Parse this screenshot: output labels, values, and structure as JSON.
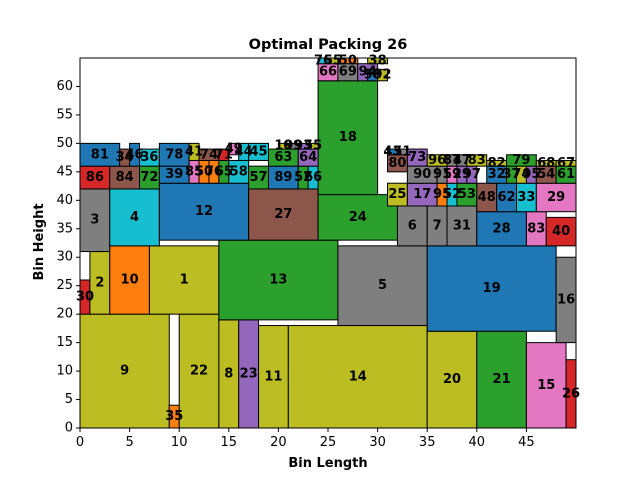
{
  "chart_data": {
    "type": "bar",
    "title": "Optimal Packing 26",
    "xlabel": "Bin Length",
    "ylabel": "Bin Height",
    "xlim": [
      0,
      50
    ],
    "ylim": [
      0,
      65
    ],
    "xticks": [
      0,
      5,
      10,
      15,
      20,
      25,
      30,
      35,
      40,
      45
    ],
    "yticks": [
      0,
      5,
      10,
      15,
      20,
      25,
      30,
      35,
      40,
      45,
      50,
      55,
      60
    ],
    "grid": false,
    "palette": {
      "blue": "#1f77b4",
      "orange": "#ff7f0e",
      "green": "#2ca02c",
      "red": "#d62728",
      "purple": "#9467bd",
      "brown": "#8c564b",
      "pink": "#e377c2",
      "gray": "#7f7f7f",
      "olive": "#bcbd22",
      "cyan": "#17becf"
    },
    "rectangles": [
      {
        "label": "9",
        "x": 0,
        "y": 0,
        "w": 9,
        "h": 20,
        "color": "olive"
      },
      {
        "label": "35",
        "x": 9,
        "y": 0,
        "w": 1,
        "h": 4,
        "color": "orange"
      },
      {
        "label": "22",
        "x": 10,
        "y": 0,
        "w": 4,
        "h": 20,
        "color": "olive"
      },
      {
        "label": "8",
        "x": 14,
        "y": 0,
        "w": 2,
        "h": 19,
        "color": "olive"
      },
      {
        "label": "23",
        "x": 16,
        "y": 0,
        "w": 2,
        "h": 19,
        "color": "purple"
      },
      {
        "label": "11",
        "x": 18,
        "y": 0,
        "w": 3,
        "h": 18,
        "color": "olive"
      },
      {
        "label": "14",
        "x": 21,
        "y": 0,
        "w": 14,
        "h": 18,
        "color": "olive"
      },
      {
        "label": "20",
        "x": 35,
        "y": 0,
        "w": 5,
        "h": 17,
        "color": "olive"
      },
      {
        "label": "21",
        "x": 40,
        "y": 0,
        "w": 5,
        "h": 17,
        "color": "green"
      },
      {
        "label": "15",
        "x": 45,
        "y": 0,
        "w": 4,
        "h": 15,
        "color": "pink"
      },
      {
        "label": "26",
        "x": 49,
        "y": 0,
        "w": 1,
        "h": 12,
        "color": "red"
      },
      {
        "label": "30",
        "x": 0,
        "y": 20,
        "w": 1,
        "h": 6,
        "color": "red"
      },
      {
        "label": "2",
        "x": 1,
        "y": 20,
        "w": 2,
        "h": 11,
        "color": "olive"
      },
      {
        "label": "10",
        "x": 3,
        "y": 20,
        "w": 4,
        "h": 12,
        "color": "orange"
      },
      {
        "label": "1",
        "x": 7,
        "y": 20,
        "w": 7,
        "h": 12,
        "color": "olive"
      },
      {
        "label": "13",
        "x": 14,
        "y": 19,
        "w": 12,
        "h": 14,
        "color": "green"
      },
      {
        "label": "5",
        "x": 26,
        "y": 18,
        "w": 9,
        "h": 14,
        "color": "gray"
      },
      {
        "label": "19",
        "x": 35,
        "y": 17,
        "w": 13,
        "h": 15,
        "color": "blue"
      },
      {
        "label": "16",
        "x": 48,
        "y": 15,
        "w": 2,
        "h": 15,
        "color": "gray"
      },
      {
        "label": "3",
        "x": 0,
        "y": 31,
        "w": 3,
        "h": 11,
        "color": "gray"
      },
      {
        "label": "4",
        "x": 3,
        "y": 32,
        "w": 5,
        "h": 10,
        "color": "cyan"
      },
      {
        "label": "12",
        "x": 8,
        "y": 33,
        "w": 9,
        "h": 10,
        "color": "blue"
      },
      {
        "label": "27",
        "x": 17,
        "y": 33,
        "w": 7,
        "h": 9,
        "color": "brown"
      },
      {
        "label": "24",
        "x": 24,
        "y": 33,
        "w": 8,
        "h": 8,
        "color": "green"
      },
      {
        "label": "6",
        "x": 32,
        "y": 32,
        "w": 3,
        "h": 7,
        "color": "gray"
      },
      {
        "label": "7",
        "x": 35,
        "y": 32,
        "w": 2,
        "h": 7,
        "color": "gray"
      },
      {
        "label": "31",
        "x": 37,
        "y": 32,
        "w": 3,
        "h": 7,
        "color": "gray"
      },
      {
        "label": "28",
        "x": 40,
        "y": 32,
        "w": 5,
        "h": 6,
        "color": "blue"
      },
      {
        "label": "83",
        "x": 45,
        "y": 32,
        "w": 2,
        "h": 6,
        "color": "pink"
      },
      {
        "label": "40",
        "x": 47,
        "y": 32,
        "w": 3,
        "h": 5,
        "color": "red"
      },
      {
        "label": "18",
        "x": 24,
        "y": 41,
        "w": 6,
        "h": 20,
        "color": "green"
      },
      {
        "label": "86",
        "x": 0,
        "y": 42,
        "w": 3,
        "h": 4,
        "color": "red"
      },
      {
        "label": "84",
        "x": 3,
        "y": 42,
        "w": 3,
        "h": 4,
        "color": "brown"
      },
      {
        "label": "72",
        "x": 6,
        "y": 42,
        "w": 2,
        "h": 4,
        "color": "green"
      },
      {
        "label": "81",
        "x": 0,
        "y": 46,
        "w": 4,
        "h": 4,
        "color": "blue"
      },
      {
        "label": "34",
        "x": 4,
        "y": 46,
        "w": 1,
        "h": 3,
        "color": "brown"
      },
      {
        "label": "46",
        "x": 5,
        "y": 46,
        "w": 1,
        "h": 4,
        "color": "blue"
      },
      {
        "label": "36",
        "x": 6,
        "y": 46,
        "w": 2,
        "h": 3,
        "color": "cyan"
      },
      {
        "label": "39",
        "x": 8,
        "y": 43,
        "w": 3,
        "h": 3,
        "color": "blue"
      },
      {
        "label": "78",
        "x": 8,
        "y": 46,
        "w": 3,
        "h": 4,
        "color": "blue"
      },
      {
        "label": "85",
        "x": 11,
        "y": 43,
        "w": 1,
        "h": 4,
        "color": "pink"
      },
      {
        "label": "50",
        "x": 12,
        "y": 43,
        "w": 1,
        "h": 4,
        "color": "orange"
      },
      {
        "label": "76",
        "x": 13,
        "y": 43,
        "w": 1,
        "h": 4,
        "color": "orange"
      },
      {
        "label": "41",
        "x": 11,
        "y": 47,
        "w": 1,
        "h": 3,
        "color": "olive"
      },
      {
        "label": "74",
        "x": 12,
        "y": 47,
        "w": 2,
        "h": 2,
        "color": "brown"
      },
      {
        "label": "65",
        "x": 14,
        "y": 43,
        "w": 1,
        "h": 4,
        "color": "green"
      },
      {
        "label": "58",
        "x": 15,
        "y": 43,
        "w": 2,
        "h": 4,
        "color": "cyan"
      },
      {
        "label": "71",
        "x": 14,
        "y": 47,
        "w": 1,
        "h": 2,
        "color": "red"
      },
      {
        "label": "49",
        "x": 15,
        "y": 48,
        "w": 1,
        "h": 2,
        "color": "pink"
      },
      {
        "label": "44",
        "x": 16,
        "y": 47,
        "w": 1,
        "h": 3,
        "color": "cyan"
      },
      {
        "label": "45",
        "x": 17,
        "y": 47,
        "w": 2,
        "h": 3,
        "color": "cyan"
      },
      {
        "label": "57",
        "x": 17,
        "y": 42,
        "w": 2,
        "h": 4,
        "color": "green"
      },
      {
        "label": "89",
        "x": 19,
        "y": 42,
        "w": 3,
        "h": 4,
        "color": "blue"
      },
      {
        "label": "52",
        "x": 22,
        "y": 42,
        "w": 1,
        "h": 4,
        "color": "green"
      },
      {
        "label": "66",
        "x": 23,
        "y": 42,
        "w": 1,
        "h": 4,
        "color": "cyan"
      },
      {
        "label": "63",
        "x": 19,
        "y": 46,
        "w": 3,
        "h": 3,
        "color": "green"
      },
      {
        "label": "64",
        "x": 22,
        "y": 46,
        "w": 2,
        "h": 3,
        "color": "purple"
      },
      {
        "label": "10",
        "x": 20,
        "y": 49,
        "w": 1,
        "h": 1,
        "color": "olive"
      },
      {
        "label": "99",
        "x": 21,
        "y": 49,
        "w": 1,
        "h": 1,
        "color": "gray"
      },
      {
        "label": "93",
        "x": 22,
        "y": 49,
        "w": 1,
        "h": 1,
        "color": "purple"
      },
      {
        "label": "55",
        "x": 23,
        "y": 49,
        "w": 1,
        "h": 1,
        "color": "olive"
      },
      {
        "label": "66",
        "x": 24,
        "y": 61,
        "w": 2,
        "h": 3,
        "color": "pink"
      },
      {
        "label": "69",
        "x": 26,
        "y": 61,
        "w": 2,
        "h": 3,
        "color": "gray"
      },
      {
        "label": "94",
        "x": 28,
        "y": 61,
        "w": 2,
        "h": 3,
        "color": "purple"
      },
      {
        "label": "98",
        "x": 29,
        "y": 61,
        "w": 1,
        "h": 2,
        "color": "blue"
      },
      {
        "label": "92",
        "x": 30,
        "y": 61,
        "w": 1,
        "h": 2,
        "color": "olive"
      },
      {
        "label": "76",
        "x": 24,
        "y": 64,
        "w": 1,
        "h": 1,
        "color": "cyan"
      },
      {
        "label": "55",
        "x": 25,
        "y": 64,
        "w": 1,
        "h": 1,
        "color": "olive"
      },
      {
        "label": "50",
        "x": 26,
        "y": 64,
        "w": 2,
        "h": 1,
        "color": "orange"
      },
      {
        "label": "38",
        "x": 29,
        "y": 64,
        "w": 2,
        "h": 1,
        "color": "olive"
      },
      {
        "label": "25",
        "x": 31,
        "y": 39,
        "w": 2,
        "h": 4,
        "color": "olive"
      },
      {
        "label": "17",
        "x": 33,
        "y": 39,
        "w": 3,
        "h": 4,
        "color": "purple"
      },
      {
        "label": "95",
        "x": 36,
        "y": 39,
        "w": 1,
        "h": 4,
        "color": "orange"
      },
      {
        "label": "52",
        "x": 37,
        "y": 39,
        "w": 1,
        "h": 4,
        "color": "cyan"
      },
      {
        "label": "53",
        "x": 38,
        "y": 39,
        "w": 2,
        "h": 4,
        "color": "green"
      },
      {
        "label": "80",
        "x": 31,
        "y": 45,
        "w": 2,
        "h": 3,
        "color": "brown"
      },
      {
        "label": "43",
        "x": 31,
        "y": 48,
        "w": 1,
        "h": 1,
        "color": "blue"
      },
      {
        "label": "51",
        "x": 32,
        "y": 48,
        "w": 1,
        "h": 1,
        "color": "gray"
      },
      {
        "label": "73",
        "x": 33,
        "y": 46,
        "w": 2,
        "h": 3,
        "color": "purple"
      },
      {
        "label": "90",
        "x": 33,
        "y": 43,
        "w": 3,
        "h": 3,
        "color": "gray"
      },
      {
        "label": "91",
        "x": 36,
        "y": 43,
        "w": 1,
        "h": 3,
        "color": "gray"
      },
      {
        "label": "59",
        "x": 37,
        "y": 43,
        "w": 1,
        "h": 3,
        "color": "pink"
      },
      {
        "label": "29",
        "x": 38,
        "y": 43,
        "w": 1,
        "h": 3,
        "color": "purple"
      },
      {
        "label": "97",
        "x": 39,
        "y": 43,
        "w": 1,
        "h": 3,
        "color": "purple"
      },
      {
        "label": "96",
        "x": 35,
        "y": 46,
        "w": 2,
        "h": 2,
        "color": "olive"
      },
      {
        "label": "87",
        "x": 37,
        "y": 46,
        "w": 1,
        "h": 2,
        "color": "gray"
      },
      {
        "label": "47",
        "x": 38,
        "y": 46,
        "w": 1,
        "h": 2,
        "color": "gray"
      },
      {
        "label": "83",
        "x": 39,
        "y": 46,
        "w": 2,
        "h": 2,
        "color": "olive"
      },
      {
        "label": "48",
        "x": 40,
        "y": 38,
        "w": 2,
        "h": 5,
        "color": "brown"
      },
      {
        "label": "62",
        "x": 42,
        "y": 38,
        "w": 2,
        "h": 5,
        "color": "blue"
      },
      {
        "label": "33",
        "x": 44,
        "y": 38,
        "w": 2,
        "h": 5,
        "color": "cyan"
      },
      {
        "label": "29",
        "x": 46,
        "y": 38,
        "w": 4,
        "h": 5,
        "color": "pink"
      },
      {
        "label": "32",
        "x": 41,
        "y": 43,
        "w": 2,
        "h": 3,
        "color": "blue"
      },
      {
        "label": "37",
        "x": 43,
        "y": 43,
        "w": 1,
        "h": 3,
        "color": "green"
      },
      {
        "label": "74",
        "x": 44,
        "y": 43,
        "w": 1,
        "h": 3,
        "color": "olive"
      },
      {
        "label": "95",
        "x": 45,
        "y": 43,
        "w": 1,
        "h": 3,
        "color": "purple"
      },
      {
        "label": "54",
        "x": 46,
        "y": 43,
        "w": 2,
        "h": 3,
        "color": "brown"
      },
      {
        "label": "61",
        "x": 48,
        "y": 43,
        "w": 2,
        "h": 3,
        "color": "green"
      },
      {
        "label": "82",
        "x": 41,
        "y": 46,
        "w": 2,
        "h": 1,
        "color": "olive"
      },
      {
        "label": "79",
        "x": 43,
        "y": 46,
        "w": 3,
        "h": 2,
        "color": "green"
      },
      {
        "label": "68",
        "x": 46,
        "y": 46,
        "w": 2,
        "h": 1,
        "color": "olive"
      },
      {
        "label": "67",
        "x": 48,
        "y": 46,
        "w": 2,
        "h": 1,
        "color": "olive"
      }
    ]
  }
}
